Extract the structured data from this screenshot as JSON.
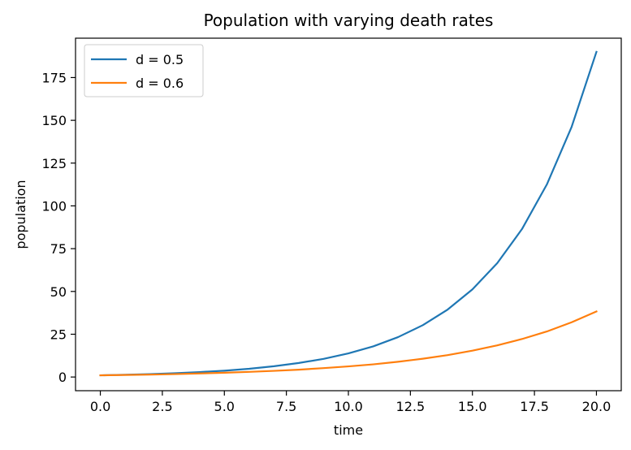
{
  "chart_data": {
    "type": "line",
    "title": "Population with varying death rates",
    "xlabel": "time",
    "ylabel": "population",
    "xlim": [
      -1.0,
      21.0
    ],
    "ylim": [
      -8.0,
      198.0
    ],
    "xticks": [
      0.0,
      2.5,
      5.0,
      7.5,
      10.0,
      12.5,
      15.0,
      17.5,
      20.0
    ],
    "xtick_labels": [
      "0.0",
      "2.5",
      "5.0",
      "7.5",
      "10.0",
      "12.5",
      "15.0",
      "17.5",
      "20.0"
    ],
    "yticks": [
      0,
      25,
      50,
      75,
      100,
      125,
      150,
      175
    ],
    "ytick_labels": [
      "0",
      "25",
      "50",
      "75",
      "100",
      "125",
      "150",
      "175"
    ],
    "grid": false,
    "legend_position": "top-left",
    "x": [
      0,
      1,
      2,
      3,
      4,
      5,
      6,
      7,
      8,
      9,
      10,
      11,
      12,
      13,
      14,
      15,
      16,
      17,
      18,
      19,
      20
    ],
    "series": [
      {
        "name": "d = 0.5",
        "color": "#1f77b4",
        "values": [
          1.0,
          1.3,
          1.7,
          2.2,
          2.9,
          3.7,
          4.8,
          6.3,
          8.2,
          10.6,
          13.8,
          17.9,
          23.3,
          30.3,
          39.4,
          51.2,
          66.5,
          86.5,
          112.5,
          146.2,
          190.0
        ]
      },
      {
        "name": "d = 0.6",
        "color": "#ff7f0e",
        "values": [
          1.0,
          1.2,
          1.4,
          1.7,
          2.1,
          2.5,
          3.0,
          3.6,
          4.3,
          5.2,
          6.2,
          7.4,
          8.9,
          10.7,
          12.8,
          15.4,
          18.5,
          22.2,
          26.6,
          32.0,
          38.3
        ]
      }
    ]
  }
}
